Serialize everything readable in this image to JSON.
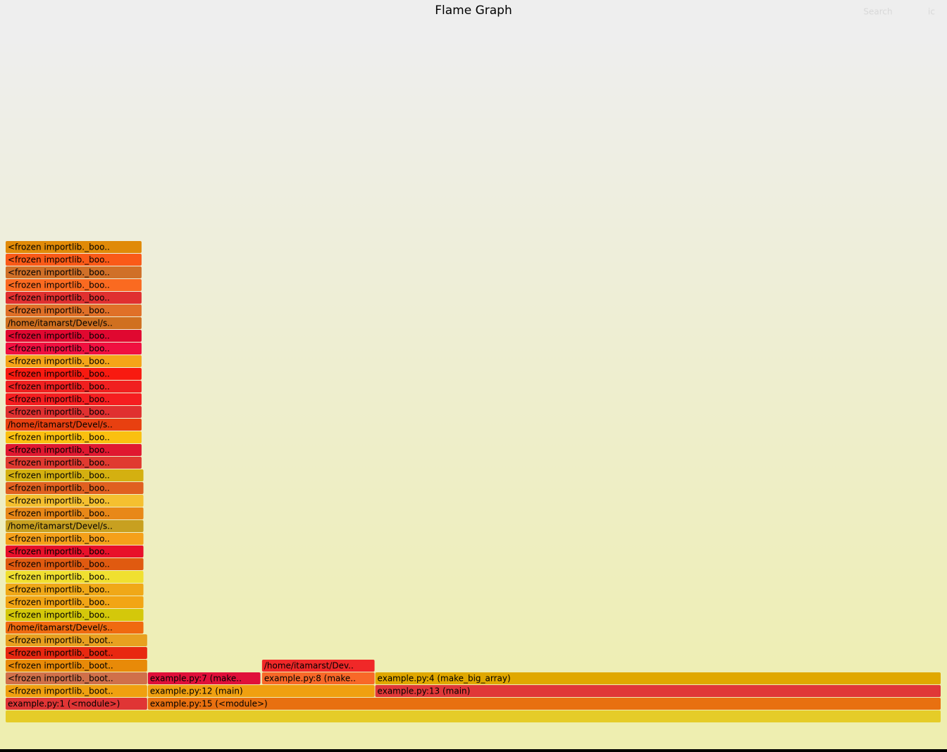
{
  "chart_data": {
    "type": "flame",
    "title": "Flame Graph",
    "search": "Search",
    "reset": "ic",
    "xlim": [
      0,
      100
    ],
    "levels": [
      [
        {
          "name": null,
          "start": 0,
          "width": 100,
          "color": "#e5cc28"
        }
      ],
      [
        {
          "name": "example.py:1 (<module>)",
          "start": 0,
          "width": 15.2,
          "color": "#e03535"
        },
        {
          "name": "example.py:15 (<module>)",
          "start": 15.2,
          "width": 84.8,
          "color": "#e87010"
        }
      ],
      [
        {
          "name": "<frozen importlib._boot..",
          "start": 0,
          "width": 15.2,
          "color": "#f0a010"
        },
        {
          "name": "example.py:12 (main)",
          "start": 15.2,
          "width": 24.3,
          "color": "#f0a010"
        },
        {
          "name": "example.py:13 (main)",
          "start": 39.5,
          "width": 60.5,
          "color": "#e03838"
        }
      ],
      [
        {
          "name": "<frozen importlib._boot..",
          "start": 0,
          "width": 15.2,
          "color": "#d0704a"
        },
        {
          "name": "example.py:7 (make..",
          "start": 15.2,
          "width": 12.1,
          "color": "#e0103a"
        },
        {
          "name": "example.py:8 (make..",
          "start": 27.4,
          "width": 12.1,
          "color": "#f86828"
        },
        {
          "name": "example.py:4 (make_big_array)",
          "start": 39.5,
          "width": 60.5,
          "color": "#e0a800"
        }
      ],
      [
        {
          "name": "<frozen importlib._boot..",
          "start": 0,
          "width": 15.2,
          "color": "#e88a08"
        },
        {
          "name": "/home/itamarst/Dev..",
          "start": 27.4,
          "width": 12.1,
          "color": "#f02828"
        }
      ],
      [
        {
          "name": "<frozen importlib._boot..",
          "start": 0,
          "width": 15.2,
          "color": "#e82810"
        }
      ],
      [
        {
          "name": "<frozen importlib._boot..",
          "start": 0,
          "width": 15.2,
          "color": "#e8a020"
        }
      ],
      [
        {
          "name": "/home/itamarst/Devel/s..",
          "start": 0,
          "width": 14.8,
          "color": "#f06a10"
        }
      ],
      [
        {
          "name": "<frozen importlib._boo..",
          "start": 0,
          "width": 14.8,
          "color": "#d4c80a"
        }
      ],
      [
        {
          "name": "<frozen importlib._boo..",
          "start": 0,
          "width": 14.8,
          "color": "#f2a515"
        }
      ],
      [
        {
          "name": "<frozen importlib._boo..",
          "start": 0,
          "width": 14.8,
          "color": "#f0a818"
        }
      ],
      [
        {
          "name": "<frozen importlib._boo..",
          "start": 0,
          "width": 14.8,
          "color": "#f0e030"
        }
      ],
      [
        {
          "name": "<frozen importlib._boo..",
          "start": 0,
          "width": 14.8,
          "color": "#e05a10"
        }
      ],
      [
        {
          "name": "<frozen importlib._boo..",
          "start": 0,
          "width": 14.8,
          "color": "#e8102a"
        }
      ],
      [
        {
          "name": "<frozen importlib._boo..",
          "start": 0,
          "width": 14.8,
          "color": "#f5a01a"
        }
      ],
      [
        {
          "name": "/home/itamarst/Devel/s..",
          "start": 0,
          "width": 14.8,
          "color": "#c8a020"
        }
      ],
      [
        {
          "name": "<frozen importlib._boo..",
          "start": 0,
          "width": 14.8,
          "color": "#e88818"
        }
      ],
      [
        {
          "name": "<frozen importlib._boo..",
          "start": 0,
          "width": 14.8,
          "color": "#f5c030"
        }
      ],
      [
        {
          "name": "<frozen importlib._boo..",
          "start": 0,
          "width": 14.8,
          "color": "#e06020"
        }
      ],
      [
        {
          "name": "<frozen importlib._boo..",
          "start": 0,
          "width": 14.8,
          "color": "#d4b010"
        }
      ],
      [
        {
          "name": "<frozen importlib._boo..",
          "start": 0,
          "width": 14.6,
          "color": "#e03a30"
        }
      ],
      [
        {
          "name": "<frozen importlib._boo..",
          "start": 0,
          "width": 14.6,
          "color": "#e01830"
        }
      ],
      [
        {
          "name": "<frozen importlib._boo..",
          "start": 0,
          "width": 14.6,
          "color": "#fac010"
        }
      ],
      [
        {
          "name": "/home/itamarst/Devel/s..",
          "start": 0,
          "width": 14.6,
          "color": "#e84010"
        }
      ],
      [
        {
          "name": "<frozen importlib._boo..",
          "start": 0,
          "width": 14.6,
          "color": "#e03030"
        }
      ],
      [
        {
          "name": "<frozen importlib._boo..",
          "start": 0,
          "width": 14.6,
          "color": "#f51e20"
        }
      ],
      [
        {
          "name": "<frozen importlib._boo..",
          "start": 0,
          "width": 14.6,
          "color": "#f02020"
        }
      ],
      [
        {
          "name": "<frozen importlib._boo..",
          "start": 0,
          "width": 14.6,
          "color": "#f81a10"
        }
      ],
      [
        {
          "name": "<frozen importlib._boo..",
          "start": 0,
          "width": 14.6,
          "color": "#f5a518"
        }
      ],
      [
        {
          "name": "<frozen importlib._boo..",
          "start": 0,
          "width": 14.6,
          "color": "#f01040"
        }
      ],
      [
        {
          "name": "<frozen importlib._boo..",
          "start": 0,
          "width": 14.6,
          "color": "#e00830"
        }
      ],
      [
        {
          "name": "/home/itamarst/Devel/s..",
          "start": 0,
          "width": 14.6,
          "color": "#d07020"
        }
      ],
      [
        {
          "name": "<frozen importlib._boo..",
          "start": 0,
          "width": 14.6,
          "color": "#e07028"
        }
      ],
      [
        {
          "name": "<frozen importlib._boo..",
          "start": 0,
          "width": 14.6,
          "color": "#e03030"
        }
      ],
      [
        {
          "name": "<frozen importlib._boo..",
          "start": 0,
          "width": 14.6,
          "color": "#fa6a20"
        }
      ],
      [
        {
          "name": "<frozen importlib._boo..",
          "start": 0,
          "width": 14.6,
          "color": "#d07028"
        }
      ],
      [
        {
          "name": "<frozen importlib._boo..",
          "start": 0,
          "width": 14.6,
          "color": "#fa5a18"
        }
      ],
      [
        {
          "name": "<frozen importlib._boo..",
          "start": 0,
          "width": 14.6,
          "color": "#e08a08"
        }
      ]
    ]
  }
}
